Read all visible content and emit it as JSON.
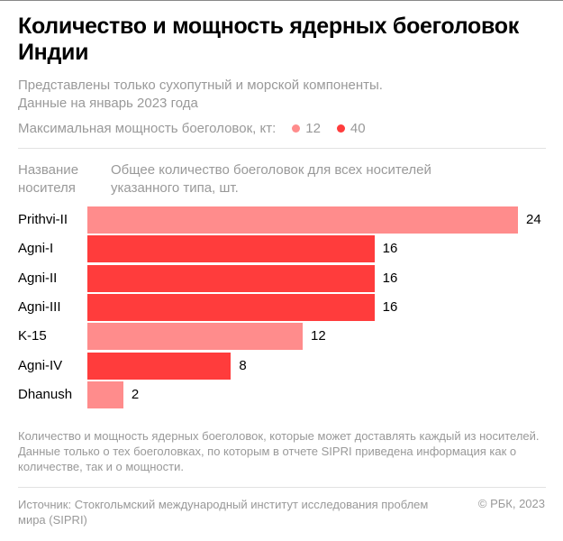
{
  "title": "Количество и мощность ядерных боеголовок Индии",
  "subtitle_lines": [
    "Представлены только сухопутный и морской компоненты.",
    "Данные на январь 2023 года"
  ],
  "legend": {
    "label": "Максимальная мощность боеголовок, кт:",
    "items": [
      {
        "label": "12",
        "color": "#ff8c8c"
      },
      {
        "label": "40",
        "color": "#ff3c3c"
      }
    ]
  },
  "column_headers": {
    "name_lines": [
      "Название",
      "носителя"
    ],
    "value_lines": [
      "Общее количество боеголовок для всех носителей",
      "указанного типа, шт."
    ]
  },
  "chart_data": {
    "type": "bar",
    "orientation": "horizontal",
    "categories": [
      "Prithvi-II",
      "Agni-I",
      "Agni-II",
      "Agni-III",
      "K-15",
      "Agni-IV",
      "Dhanush"
    ],
    "values": [
      24,
      16,
      16,
      16,
      12,
      8,
      2
    ],
    "yield_kt": [
      "12",
      "40",
      "40",
      "40",
      "12",
      "40",
      "12"
    ],
    "xlim": [
      0,
      24
    ],
    "grid": false,
    "legend_placement": "top"
  },
  "note": "Количество и мощность ядерных боеголовок, которые может доставлять каждый из носителей. Данные только о тех боеголовках, по которым в отчете SIPRI приведена информация как о количестве, так и о мощности.",
  "source": "Источник: Стокгольмский международный институт исследования проблем мира (SIPRI)",
  "copyright": "© РБК, 2023"
}
